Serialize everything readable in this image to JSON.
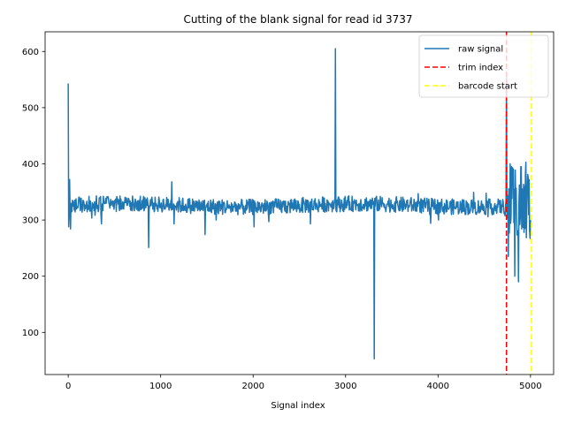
{
  "chart_data": {
    "type": "line",
    "title": "Cutting of the blank signal for read id 3737",
    "xlabel": "Signal index",
    "ylabel": "",
    "xlim": [
      -250,
      5250
    ],
    "ylim": [
      25,
      635
    ],
    "xticks": [
      0,
      1000,
      2000,
      3000,
      4000,
      5000
    ],
    "yticks": [
      100,
      200,
      300,
      400,
      500,
      600
    ],
    "grid": false,
    "legend_position": "top-right",
    "series": [
      {
        "name": "raw signal",
        "color": "#1f77b4",
        "style": "solid",
        "baseline": 326,
        "noise_amplitude": 14,
        "spikes": [
          {
            "x": 0,
            "y": 543
          },
          {
            "x": 5,
            "y": 288
          },
          {
            "x": 15,
            "y": 372
          },
          {
            "x": 25,
            "y": 284
          },
          {
            "x": 870,
            "y": 251
          },
          {
            "x": 1120,
            "y": 368
          },
          {
            "x": 1480,
            "y": 274
          },
          {
            "x": 1600,
            "y": 300
          },
          {
            "x": 2170,
            "y": 297
          },
          {
            "x": 2620,
            "y": 293
          },
          {
            "x": 2890,
            "y": 605
          },
          {
            "x": 3310,
            "y": 53
          },
          {
            "x": 3920,
            "y": 294
          },
          {
            "x": 4740,
            "y": 560
          },
          {
            "x": 4760,
            "y": 235
          },
          {
            "x": 4780,
            "y": 400
          },
          {
            "x": 4830,
            "y": 200
          },
          {
            "x": 4870,
            "y": 190
          },
          {
            "x": 4900,
            "y": 395
          },
          {
            "x": 4930,
            "y": 278
          },
          {
            "x": 4950,
            "y": 403
          },
          {
            "x": 4985,
            "y": 372
          },
          {
            "x": 5000,
            "y": 300
          }
        ]
      },
      {
        "name": "trim index",
        "color": "#ff0000",
        "style": "dashed",
        "x": 4740
      },
      {
        "name": "barcode start",
        "color": "#ffff00",
        "style": "dashed",
        "x": 5010
      }
    ]
  }
}
